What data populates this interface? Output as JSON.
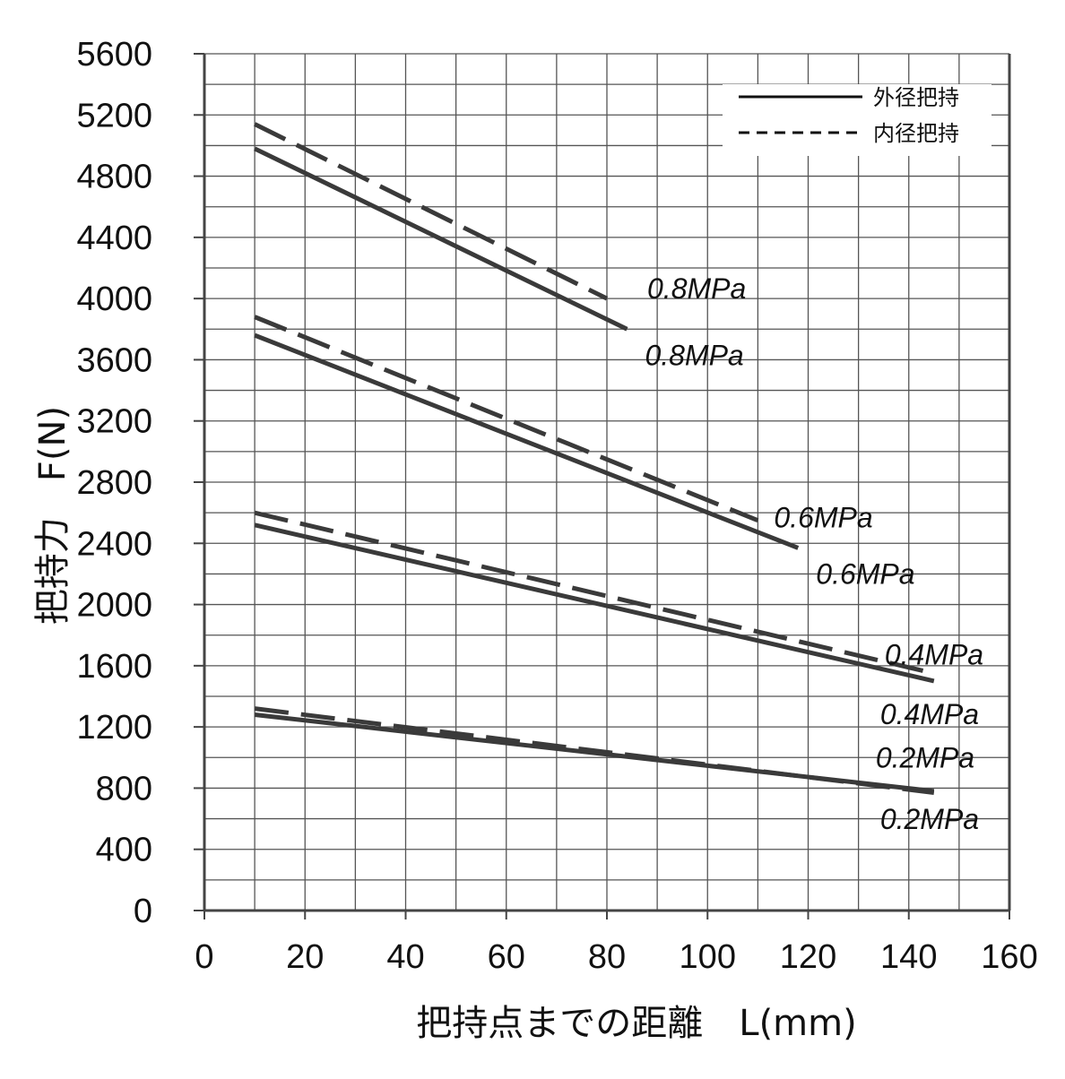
{
  "chart_data": {
    "type": "line",
    "title": "",
    "xlabel": "把持点までの距離　L(mm)",
    "ylabel": "把持力　F(N)",
    "xlim": [
      0,
      160
    ],
    "ylim": [
      0,
      5600
    ],
    "x_ticks": [
      "0",
      "20",
      "40",
      "60",
      "80",
      "100",
      "120",
      "140",
      "160"
    ],
    "y_ticks": [
      "0",
      "400",
      "800",
      "1200",
      "1600",
      "2000",
      "2400",
      "2800",
      "3200",
      "3600",
      "4000",
      "4400",
      "4800",
      "5200",
      "5600"
    ],
    "grid": true,
    "legend_position": "top-right",
    "legend": [
      {
        "label": "外径把持",
        "style": "solid"
      },
      {
        "label": "内径把持",
        "style": "dashed"
      }
    ],
    "line_color": "#3a3a3a",
    "series": [
      {
        "pressure": "0.8MPa",
        "grip": "外径把持",
        "style": "solid",
        "x": [
          10,
          84
        ],
        "y": [
          4980,
          3800
        ],
        "label": "0.8MPa"
      },
      {
        "pressure": "0.8MPa",
        "grip": "内径把持",
        "style": "dashed",
        "x": [
          10,
          80
        ],
        "y": [
          5140,
          4000
        ],
        "label": "0.8MPa"
      },
      {
        "pressure": "0.6MPa",
        "grip": "外径把持",
        "style": "solid",
        "x": [
          10,
          118
        ],
        "y": [
          3760,
          2370
        ],
        "label": "0.6MPa"
      },
      {
        "pressure": "0.6MPa",
        "grip": "内径把持",
        "style": "dashed",
        "x": [
          10,
          110
        ],
        "y": [
          3880,
          2550
        ],
        "label": "0.6MPa"
      },
      {
        "pressure": "0.4MPa",
        "grip": "外径把持",
        "style": "solid",
        "x": [
          10,
          145
        ],
        "y": [
          2520,
          1500
        ],
        "label": "0.4MPa"
      },
      {
        "pressure": "0.4MPa",
        "grip": "内径把持",
        "style": "dashed",
        "x": [
          10,
          145
        ],
        "y": [
          2600,
          1550
        ],
        "label": "0.4MPa"
      },
      {
        "pressure": "0.2MPa",
        "grip": "外径把持",
        "style": "solid",
        "x": [
          10,
          145
        ],
        "y": [
          1280,
          780
        ],
        "label": "0.2MPa"
      },
      {
        "pressure": "0.2MPa",
        "grip": "内径把持",
        "style": "dashed",
        "x": [
          10,
          145
        ],
        "y": [
          1320,
          770
        ],
        "label": "0.2MPa"
      }
    ]
  }
}
